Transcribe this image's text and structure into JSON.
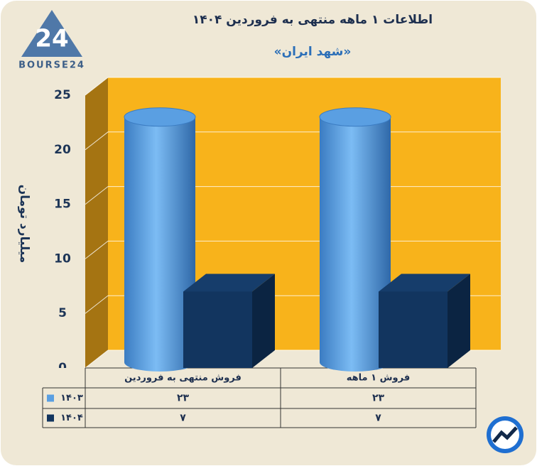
{
  "logo": {
    "mark": "24",
    "text": "BOURSE24"
  },
  "chart_data": {
    "type": "bar",
    "title": "اطلاعات ۱ ماهه منتهی به فروردین ۱۴۰۴",
    "subtitle": "«شهد ایران»",
    "y_label": "میلیارد تومان",
    "categories": [
      "فروش منتهی به  فروردین",
      "فروش ۱  ماهه"
    ],
    "series": [
      {
        "name": "۱۴۰۳",
        "color": "#5a9fe2",
        "values": [
          23,
          23
        ],
        "value_labels": [
          "۲۳",
          "۲۳"
        ]
      },
      {
        "name": "۱۴۰۴",
        "color": "#12355f",
        "values": [
          7,
          7
        ],
        "value_labels": [
          "۷",
          "۷"
        ]
      }
    ],
    "ylim": [
      0,
      25
    ],
    "yticks": [
      0,
      5,
      10,
      15,
      20,
      25
    ],
    "grid": true
  }
}
